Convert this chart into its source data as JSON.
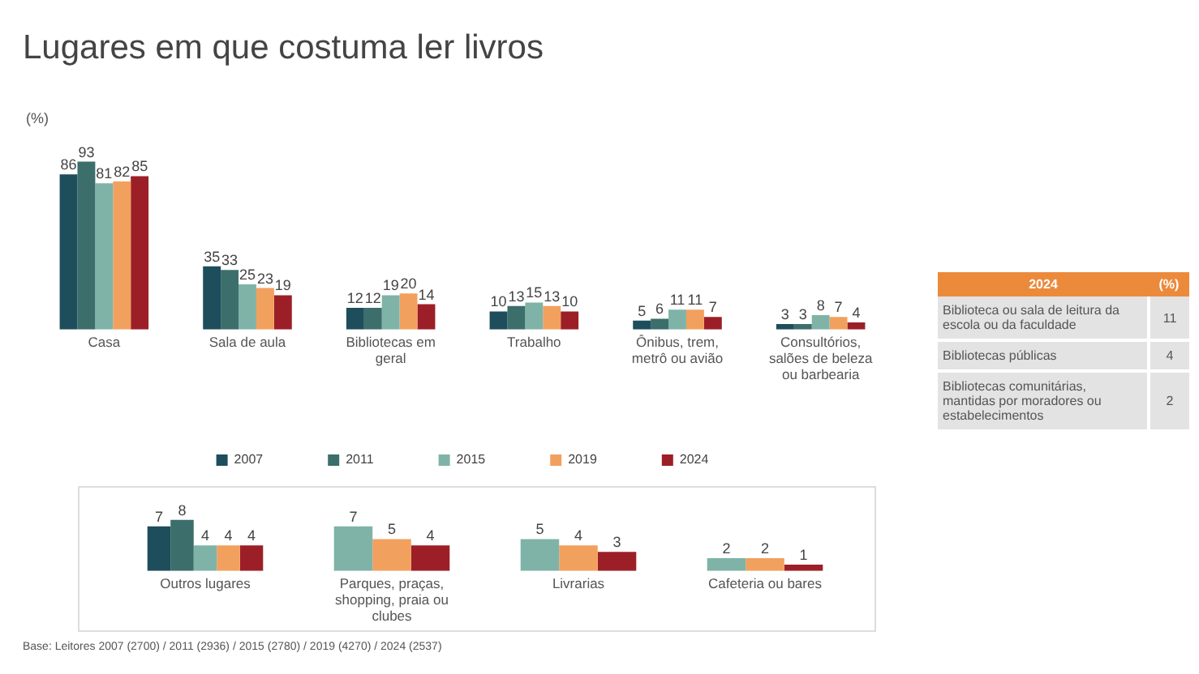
{
  "chart_data": [
    {
      "type": "bar",
      "title": "Lugares em que costuma ler livros",
      "ylabel": "(%)",
      "categories": [
        "Casa",
        "Sala de aula",
        "Bibliotecas em geral",
        "Trabalho",
        "Ônibus, trem, metrô ou avião",
        "Consultórios, salões de beleza ou barbearia"
      ],
      "series": [
        {
          "name": "2007",
          "color": "#1e4d5c",
          "values": [
            86,
            35,
            12,
            10,
            5,
            3
          ]
        },
        {
          "name": "2011",
          "color": "#3c6e6b",
          "values": [
            93,
            33,
            12,
            13,
            6,
            3
          ]
        },
        {
          "name": "2015",
          "color": "#7fb3a8",
          "values": [
            81,
            25,
            19,
            15,
            11,
            8
          ]
        },
        {
          "name": "2019",
          "color": "#f2a05e",
          "values": [
            82,
            23,
            20,
            13,
            11,
            7
          ]
        },
        {
          "name": "2024",
          "color": "#9c1f27",
          "values": [
            85,
            19,
            14,
            10,
            7,
            4
          ]
        }
      ],
      "data_labels": true,
      "legend": "bottom",
      "tick_labels": "x",
      "grid": false,
      "annotations": [
        "Base: Leitores 2007 (2700) / 2011 (2936) / 2015 (2780) / 2019 (4270) / 2024 (2537)"
      ]
    },
    {
      "type": "bar",
      "categories": [
        "Outros lugares",
        "Parques, praças, shopping, praia ou clubes",
        "Livrarias",
        "Cafeteria ou bares"
      ],
      "series": [
        {
          "color": "#1e4d5c",
          "values": [
            7,
            null,
            null,
            null
          ]
        },
        {
          "color": "#3c6e6b",
          "values": [
            8,
            null,
            null,
            null
          ]
        },
        {
          "color": "#7fb3a8",
          "values": [
            4,
            7,
            5,
            2
          ]
        },
        {
          "color": "#f2a05e",
          "values": [
            4,
            5,
            4,
            2
          ]
        },
        {
          "color": "#9c1f27",
          "values": [
            4,
            4,
            3,
            1
          ]
        }
      ],
      "data_labels": true,
      "tick_labels": "x",
      "grid": false
    },
    {
      "type": "other",
      "title": "2024",
      "ylabel": "(%)",
      "categories": [
        "Biblioteca ou sala de leitura da escola ou da faculdade",
        "Bibliotecas públicas",
        "Bibliotecas comunitárias, mantidas por moradores ou estabelecimentos"
      ],
      "values": [
        11,
        4,
        2
      ],
      "data_labels": true
    }
  ]
}
